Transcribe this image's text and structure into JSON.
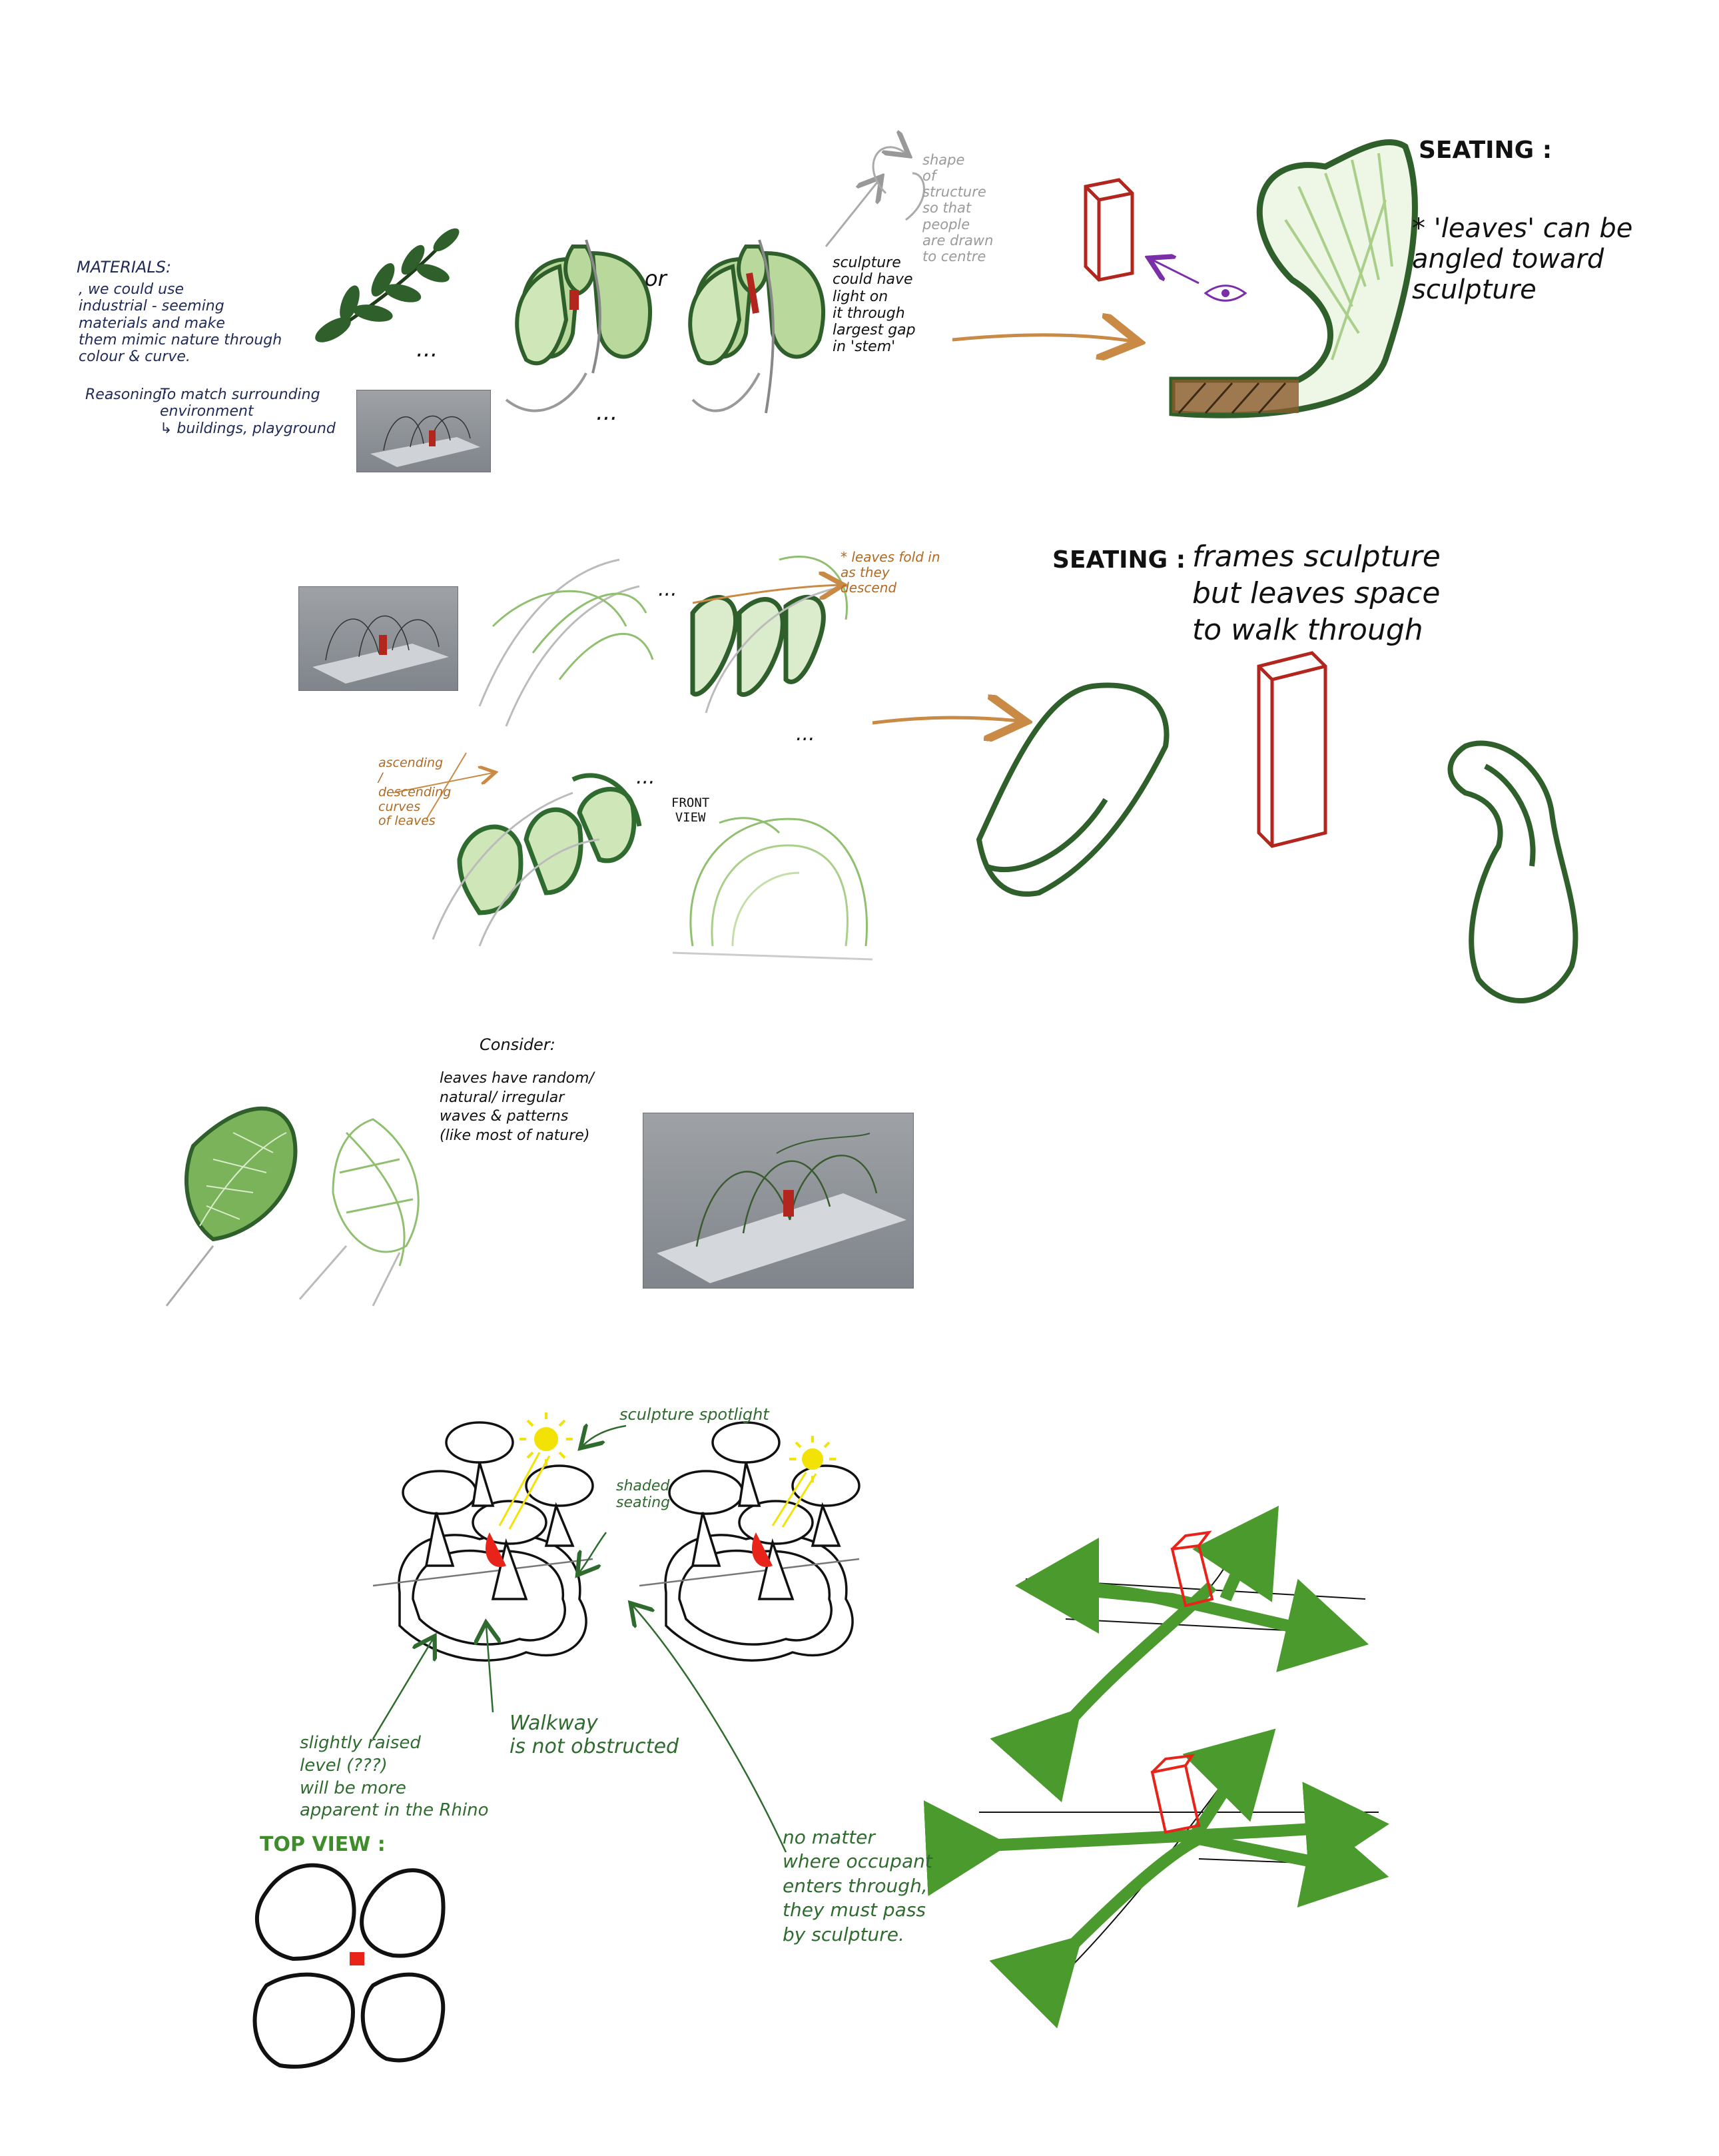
{
  "notes": {
    "materials_title": "MATERIALS:",
    "materials_body": ", we could use\nindustrial - seeming\nmaterials and make\nthem mimic nature through\ncolour & curve.",
    "reasoning_label": "Reasoning:",
    "reasoning_body": "To match surrounding\nenvironment\n↳ buildings, playground",
    "or_label": "or",
    "ellipsis": "...",
    "shape_note": "shape\nof\nstructure\nso that\npeople\nare drawn\nto centre",
    "sculpture_light_note": "sculpture\ncould have\nlight on\nit through\nlargest gap\nin 'stem'",
    "seating1_title": "SEATING :",
    "seating1_note": "* 'leaves' can be\nangled toward\nsculpture",
    "leaves_fold_note": "* leaves fold in\nas they\ndescend",
    "asc_desc_note": "ascending\n/\ndescending\ncurves\nof leaves",
    "front_view_label": "FRONT\nVIEW",
    "seating2_title": "SEATING :",
    "seating2_note": "frames sculpture\nbut leaves space\nto walk through",
    "consider_title": "Consider:",
    "consider_body": "leaves have random/\nnatural/ irregular\nwaves & patterns\n(like most of nature)",
    "spotlight_note": "sculpture spotlight",
    "shaded_note": "shaded\nseating",
    "raised_note": "slightly raised\nlevel (???)\nwill be more\napparent in the Rhino",
    "walkway_note": "Walkway\nis not obstructed",
    "pass_note": "no matter\nwhere occupant\nenters through,\nthey must pass\nby sculpture.",
    "top_view_label": "TOP VIEW :"
  },
  "colors": {
    "leaf_dark": "#2f5f2a",
    "leaf_light": "#a9cf8a",
    "sculpture": "#b3261e",
    "sculpture_bright": "#e8241a",
    "path_green": "#4a9a2e",
    "sun": "#f2e205",
    "ink": "#111111",
    "arrow_brown": "#c88a45",
    "eye_purple": "#7a2ea8"
  },
  "icons": [
    "sun-icon",
    "eye-icon",
    "arrow-icon"
  ]
}
